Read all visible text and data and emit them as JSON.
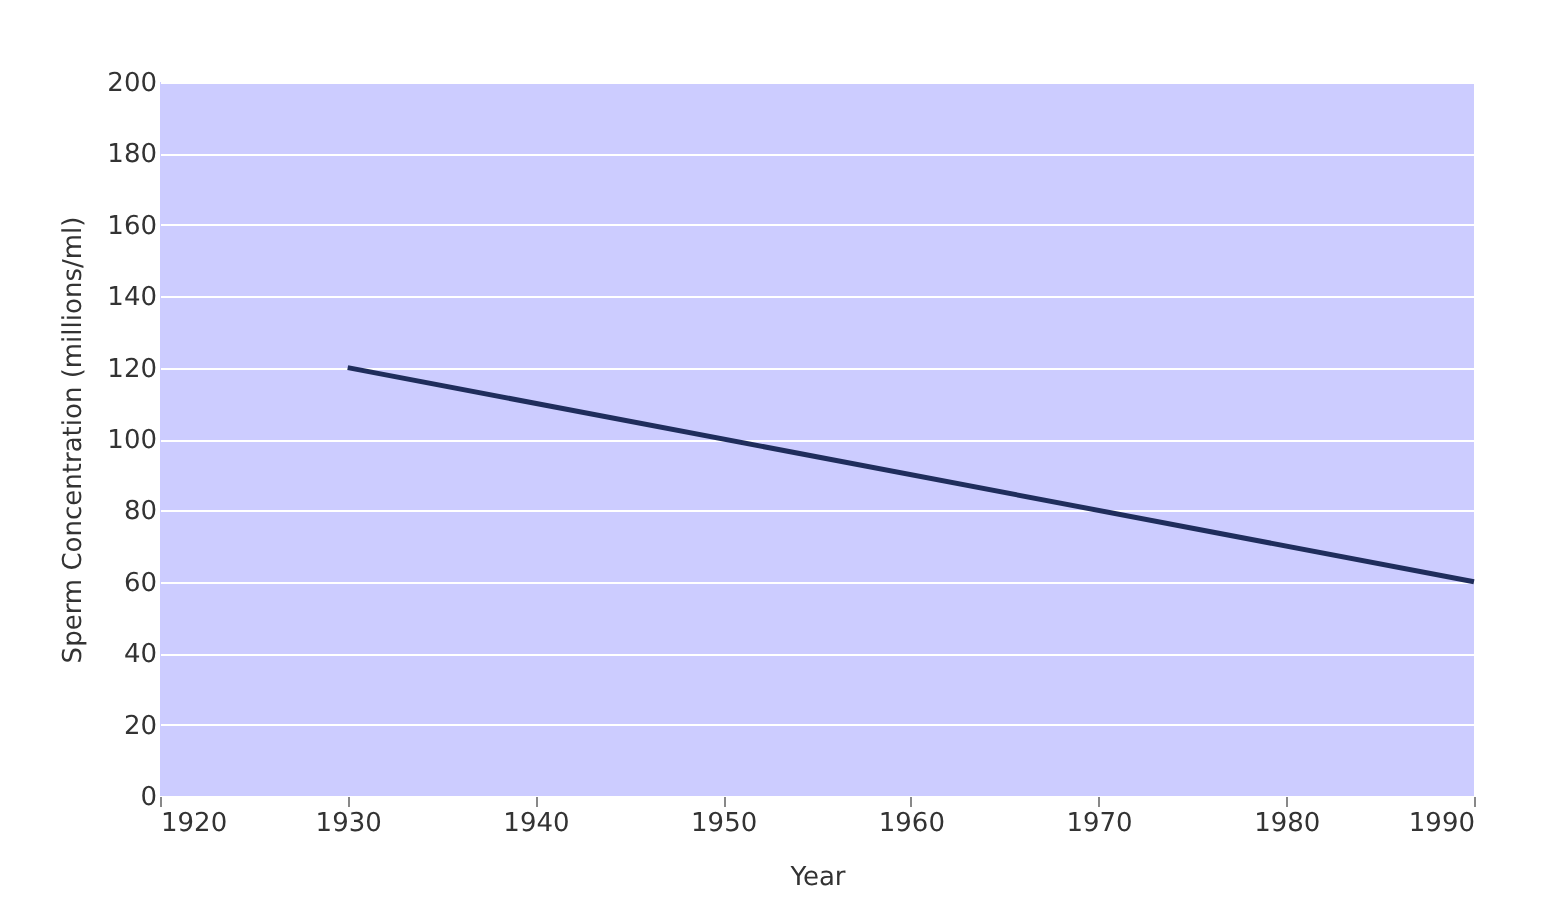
{
  "chart_data": {
    "type": "line",
    "xlabel": "Year",
    "ylabel": "Sperm Concentration (millions/ml)",
    "x": [
      1930,
      1990
    ],
    "series": [
      {
        "color": "#1f2d5c",
        "values": [
          120,
          60
        ]
      }
    ],
    "xlim": [
      1920,
      1990
    ],
    "xticks": [
      1920,
      1930,
      1940,
      1950,
      1960,
      1970,
      1980,
      1990
    ],
    "ylim": [
      0,
      200
    ],
    "yticks": [
      0,
      20,
      40,
      60,
      80,
      100,
      120,
      140,
      160,
      180,
      200
    ],
    "grid": "y",
    "marker": "none",
    "line_style": "solid"
  }
}
